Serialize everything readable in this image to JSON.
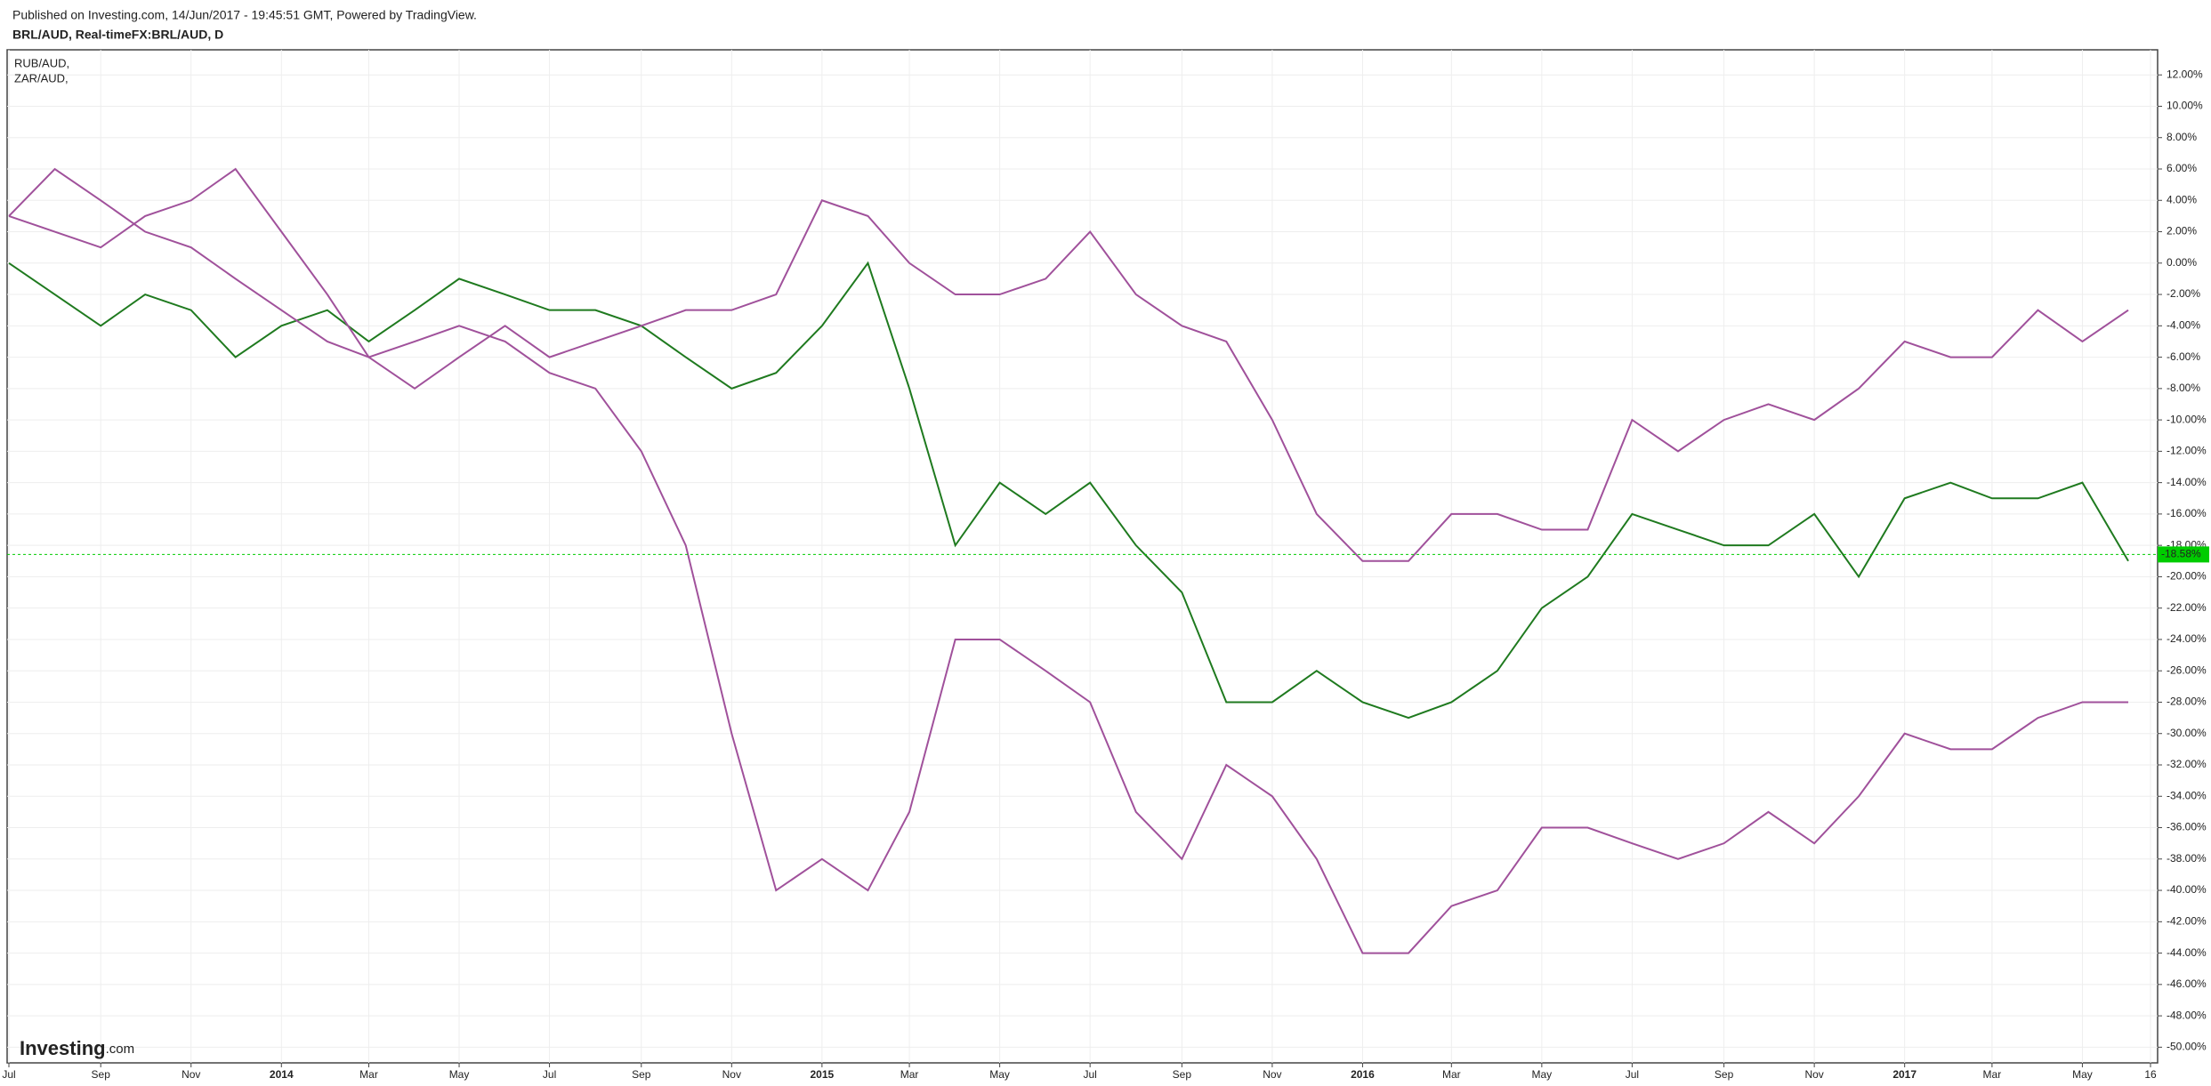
{
  "header": {
    "published": "Published on Investing.com, 14/Jun/2017 - 19:45:51 GMT, Powered by TradingView.",
    "symbol": "BRL/AUD, Real-timeFX:BRL/AUD, D"
  },
  "logo": {
    "brand": "Investing",
    "suffix": ".com"
  },
  "chart_data": {
    "type": "line",
    "x": [
      "2013-07",
      "2013-08",
      "2013-09",
      "2013-10",
      "2013-11",
      "2013-12",
      "2014-01",
      "2014-02",
      "2014-03",
      "2014-04",
      "2014-05",
      "2014-06",
      "2014-07",
      "2014-08",
      "2014-09",
      "2014-10",
      "2014-11",
      "2014-12",
      "2015-01",
      "2015-02",
      "2015-03",
      "2015-04",
      "2015-05",
      "2015-06",
      "2015-07",
      "2015-08",
      "2015-09",
      "2015-10",
      "2015-11",
      "2015-12",
      "2016-01",
      "2016-02",
      "2016-03",
      "2016-04",
      "2016-05",
      "2016-06",
      "2016-07",
      "2016-08",
      "2016-09",
      "2016-10",
      "2016-11",
      "2016-12",
      "2017-01",
      "2017-02",
      "2017-03",
      "2017-04",
      "2017-05",
      "2017-06"
    ],
    "series": [
      {
        "color": "#1f7a1f",
        "values": [
          0,
          -2,
          -4,
          -2,
          -3,
          -6,
          -4,
          -3,
          -5,
          -3,
          -1,
          -2,
          -3,
          -3,
          -4,
          -6,
          -8,
          -7,
          -4,
          0,
          -8,
          -18,
          -14,
          -16,
          -14,
          -18,
          -21,
          -28,
          -28,
          -26,
          -28,
          -29,
          -28,
          -26,
          -22,
          -20,
          -16,
          -17,
          -18,
          -18,
          -16,
          -20,
          -15,
          -14,
          -15,
          -15,
          -14,
          -19
        ]
      },
      {
        "name": "RUB/AUD,",
        "color": "#a0519b",
        "values": [
          3,
          6,
          4,
          2,
          1,
          -1,
          -3,
          -5,
          -6,
          -5,
          -4,
          -5,
          -7,
          -8,
          -12,
          -18,
          -30,
          -40,
          -38,
          -40,
          -35,
          -24,
          -24,
          -26,
          -28,
          -35,
          -38,
          -32,
          -34,
          -38,
          -44,
          -44,
          -41,
          -40,
          -36,
          -36,
          -37,
          -38,
          -37,
          -35,
          -37,
          -34,
          -30,
          -31,
          -31,
          -29,
          -28,
          -28
        ]
      },
      {
        "name": "ZAR/AUD,",
        "color": "#a0519b",
        "values": [
          3,
          2,
          1,
          3,
          4,
          6,
          2,
          -2,
          -6,
          -8,
          -6,
          -4,
          -6,
          -5,
          -4,
          -3,
          -3,
          -2,
          4,
          3,
          0,
          -2,
          -2,
          -1,
          2,
          -2,
          -4,
          -5,
          -10,
          -16,
          -19,
          -19,
          -16,
          -16,
          -17,
          -17,
          -10,
          -12,
          -10,
          -9,
          -10,
          -8,
          -5,
          -6,
          -6,
          -3,
          -5,
          -3
        ]
      }
    ],
    "price_line": {
      "value": -18.58,
      "label": "-18.58%",
      "color": "#00cc00"
    },
    "xlim": [
      "2013-07-01",
      "2017-06-16"
    ],
    "xticks": [
      {
        "value": "2013-07-01",
        "label": "Jul"
      },
      {
        "value": "2013-09-01",
        "label": "Sep"
      },
      {
        "value": "2013-11-01",
        "label": "Nov"
      },
      {
        "value": "2014-01-01",
        "label": "2014"
      },
      {
        "value": "2014-03-01",
        "label": "Mar"
      },
      {
        "value": "2014-05-01",
        "label": "May"
      },
      {
        "value": "2014-07-01",
        "label": "Jul"
      },
      {
        "value": "2014-09-01",
        "label": "Sep"
      },
      {
        "value": "2014-11-01",
        "label": "Nov"
      },
      {
        "value": "2015-01-01",
        "label": "2015"
      },
      {
        "value": "2015-03-01",
        "label": "Mar"
      },
      {
        "value": "2015-05-01",
        "label": "May"
      },
      {
        "value": "2015-07-01",
        "label": "Jul"
      },
      {
        "value": "2015-09-01",
        "label": "Sep"
      },
      {
        "value": "2015-11-01",
        "label": "Nov"
      },
      {
        "value": "2016-01-01",
        "label": "2016"
      },
      {
        "value": "2016-03-01",
        "label": "Mar"
      },
      {
        "value": "2016-05-01",
        "label": "May"
      },
      {
        "value": "2016-07-01",
        "label": "Jul"
      },
      {
        "value": "2016-09-01",
        "label": "Sep"
      },
      {
        "value": "2016-11-01",
        "label": "Nov"
      },
      {
        "value": "2017-01-01",
        "label": "2017"
      },
      {
        "value": "2017-03-01",
        "label": "Mar"
      },
      {
        "value": "2017-05-01",
        "label": "May"
      },
      {
        "value": "2017-06-16",
        "label": "16"
      }
    ],
    "ylim": [
      -51,
      13.6
    ],
    "yticks": [
      {
        "value": 12,
        "label": "12.00%"
      },
      {
        "value": 10,
        "label": "10.00%"
      },
      {
        "value": 8,
        "label": "8.00%"
      },
      {
        "value": 6,
        "label": "6.00%"
      },
      {
        "value": 4,
        "label": "4.00%"
      },
      {
        "value": 2,
        "label": "2.00%"
      },
      {
        "value": 0,
        "label": "0.00%"
      },
      {
        "value": -2,
        "label": "-2.00%"
      },
      {
        "value": -4,
        "label": "-4.00%"
      },
      {
        "value": -6,
        "label": "-6.00%"
      },
      {
        "value": -8,
        "label": "-8.00%"
      },
      {
        "value": -10,
        "label": "-10.00%"
      },
      {
        "value": -12,
        "label": "-12.00%"
      },
      {
        "value": -14,
        "label": "-14.00%"
      },
      {
        "value": -16,
        "label": "-16.00%"
      },
      {
        "value": -18,
        "label": "-18.00%"
      },
      {
        "value": -20,
        "label": "-20.00%"
      },
      {
        "value": -22,
        "label": "-22.00%"
      },
      {
        "value": -24,
        "label": "-24.00%"
      },
      {
        "value": -26,
        "label": "-26.00%"
      },
      {
        "value": -28,
        "label": "-28.00%"
      },
      {
        "value": -30,
        "label": "-30.00%"
      },
      {
        "value": -32,
        "label": "-32.00%"
      },
      {
        "value": -34,
        "label": "-34.00%"
      },
      {
        "value": -36,
        "label": "-36.00%"
      },
      {
        "value": -38,
        "label": "-38.00%"
      },
      {
        "value": -40,
        "label": "-40.00%"
      },
      {
        "value": -42,
        "label": "-42.00%"
      },
      {
        "value": -44,
        "label": "-44.00%"
      },
      {
        "value": -46,
        "label": "-46.00%"
      },
      {
        "value": -48,
        "label": "-48.00%"
      },
      {
        "value": -50,
        "label": "-50.00%"
      }
    ],
    "grid": true
  }
}
